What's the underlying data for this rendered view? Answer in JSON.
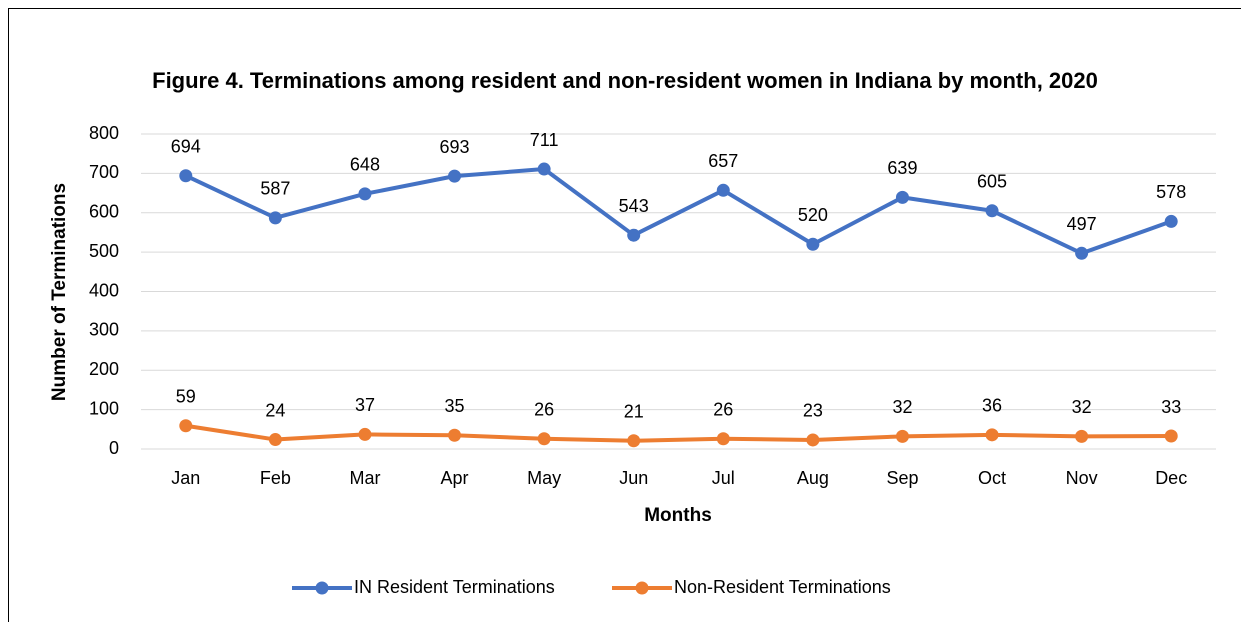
{
  "chart_data": {
    "type": "line",
    "title": "Figure 4. Terminations among resident and non-resident women in Indiana by month, 2020",
    "x_label": "Months",
    "y_label": "Number of Terminations",
    "categories": [
      "Jan",
      "Feb",
      "Mar",
      "Apr",
      "May",
      "Jun",
      "Jul",
      "Aug",
      "Sep",
      "Oct",
      "Nov",
      "Dec"
    ],
    "series": [
      {
        "name": "IN Resident Terminations",
        "color": "#4472c4",
        "values": [
          694,
          587,
          648,
          693,
          711,
          543,
          657,
          520,
          639,
          605,
          497,
          578
        ]
      },
      {
        "name": "Non-Resident Terminations",
        "color": "#ed7d31",
        "values": [
          59,
          24,
          37,
          35,
          26,
          21,
          26,
          23,
          32,
          36,
          32,
          33
        ]
      }
    ],
    "ylim": [
      0,
      800
    ],
    "yticks": [
      0,
      100,
      200,
      300,
      400,
      500,
      600,
      700,
      800
    ],
    "grid": true,
    "legend": "bottom"
  }
}
